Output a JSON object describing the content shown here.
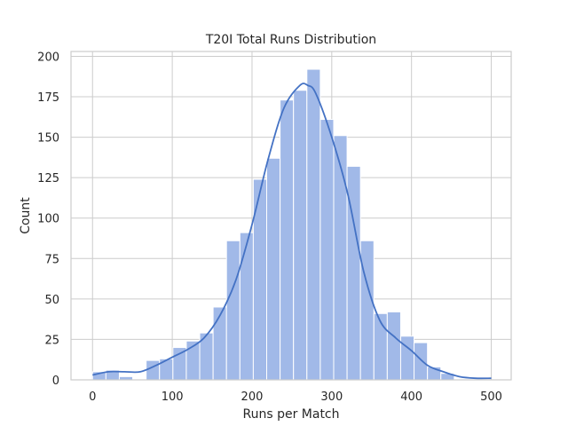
{
  "chart_data": {
    "type": "bar",
    "subtype": "histogram-with-kde",
    "title": "T20I Total Runs Distribution",
    "xlabel": "Runs per Match",
    "ylabel": "Count",
    "xlim": [
      -27,
      525
    ],
    "ylim": [
      0,
      203
    ],
    "xticks": [
      0,
      100,
      200,
      300,
      400,
      500
    ],
    "yticks": [
      0,
      25,
      50,
      75,
      100,
      125,
      150,
      175,
      200
    ],
    "grid": true,
    "bin_edges": [
      0,
      16.8,
      33.6,
      50.4,
      67.2,
      84.0,
      100.8,
      117.6,
      134.4,
      151.2,
      168.0,
      184.8,
      201.6,
      218.4,
      235.2,
      252.0,
      268.8,
      285.6,
      302.4,
      319.2,
      336.0,
      352.8,
      369.6,
      386.4,
      403.2,
      420.0,
      436.8,
      453.6,
      470.4,
      487.2,
      504.0
    ],
    "counts": [
      5,
      6,
      2,
      0,
      12,
      13,
      20,
      24,
      29,
      45,
      86,
      91,
      124,
      137,
      173,
      179,
      192,
      161,
      151,
      132,
      86,
      41,
      42,
      27,
      23,
      8,
      4,
      0,
      0,
      0
    ],
    "kde": {
      "x": [
        0,
        20,
        40,
        60,
        80,
        100,
        120,
        140,
        160,
        180,
        200,
        220,
        240,
        260,
        270,
        280,
        300,
        320,
        340,
        360,
        380,
        400,
        420,
        440,
        460,
        480,
        500
      ],
      "y": [
        3,
        5,
        5,
        5,
        9,
        14,
        19,
        26,
        40,
        62,
        96,
        136,
        168,
        182,
        182,
        177,
        150,
        115,
        67,
        37,
        26,
        18,
        9,
        5,
        2,
        1,
        1
      ]
    },
    "colors": {
      "bar": "#a1b9e8",
      "kde": "#4472c4",
      "grid": "#cccccc"
    }
  }
}
